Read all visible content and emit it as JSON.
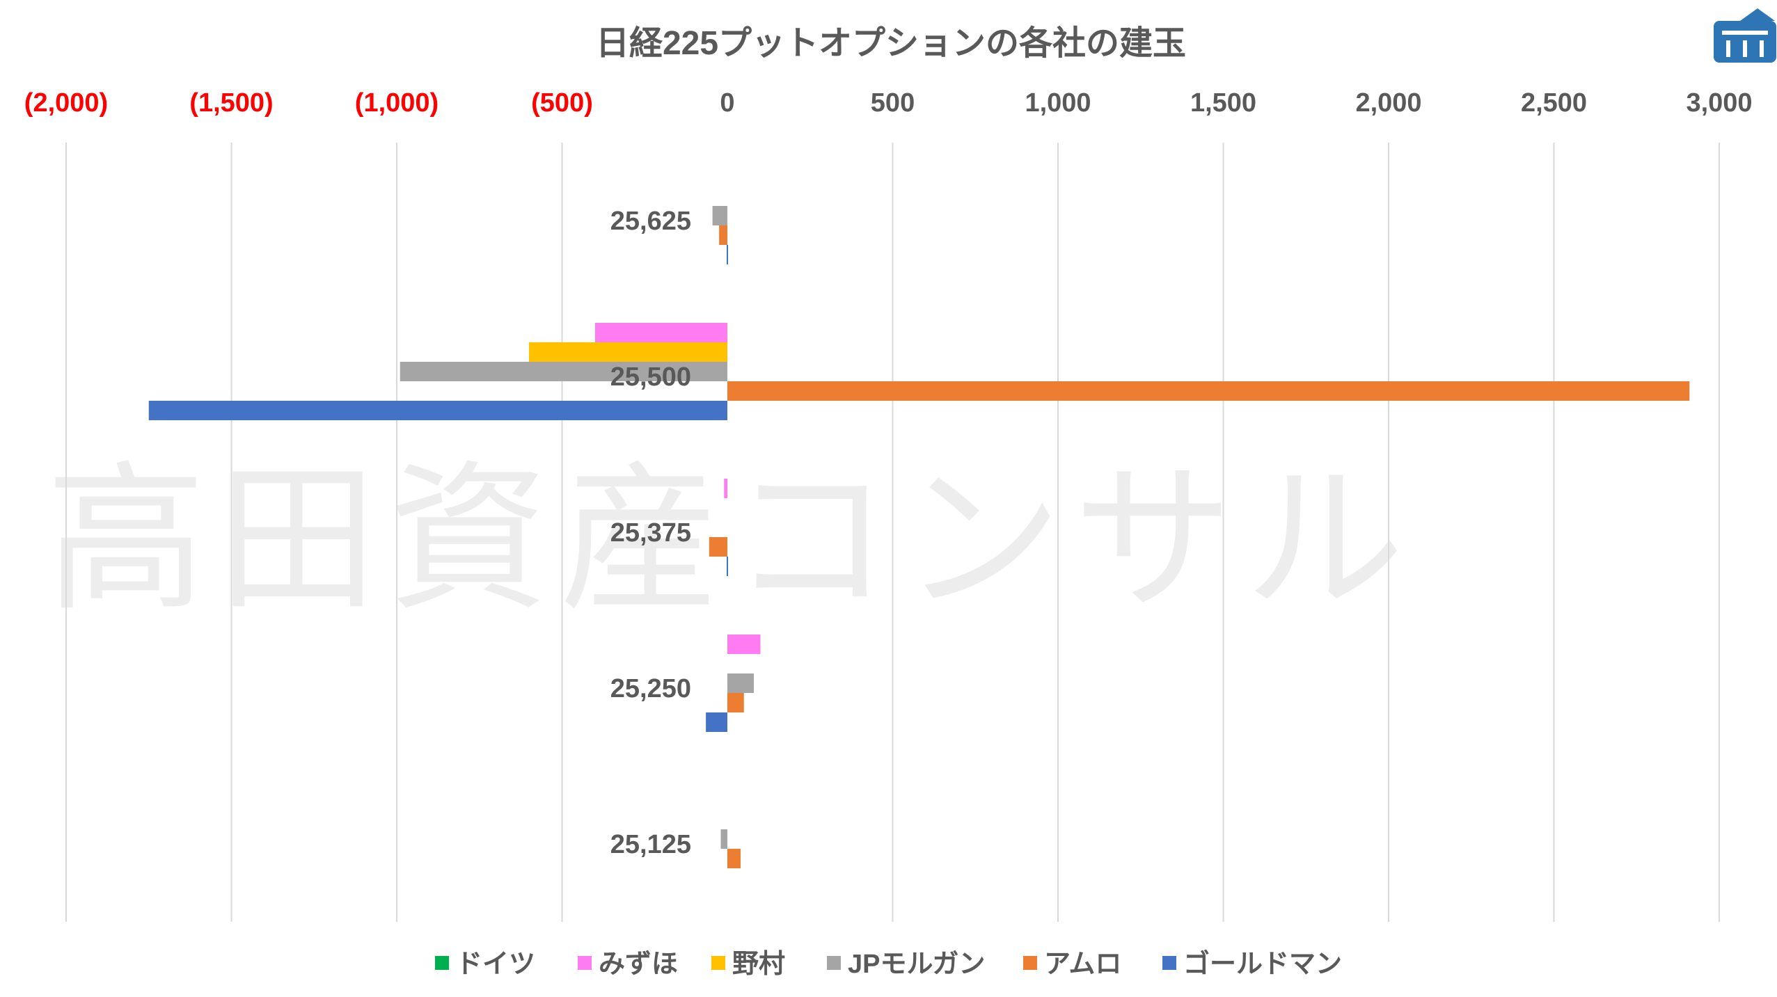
{
  "chart_data": {
    "type": "bar",
    "orientation": "horizontal",
    "title": "日経225プットオプションの各社の建玉",
    "categories": [
      "25,625",
      "25,500",
      "25,375",
      "25,250",
      "25,125"
    ],
    "series": [
      {
        "name": "ドイツ",
        "color": "#00b050",
        "values": [
          0,
          0,
          0,
          0,
          0
        ]
      },
      {
        "name": "みずほ",
        "color": "#ff7bf2",
        "values": [
          0,
          -400,
          -10,
          100,
          0
        ]
      },
      {
        "name": "野村",
        "color": "#ffc000",
        "values": [
          0,
          -600,
          0,
          0,
          0
        ]
      },
      {
        "name": "JPモルガン",
        "color": "#a5a5a5",
        "values": [
          -45,
          -990,
          0,
          80,
          -20
        ]
      },
      {
        "name": "アムロ",
        "color": "#ed7d31",
        "values": [
          -25,
          2910,
          -55,
          50,
          40
        ]
      },
      {
        "name": "ゴールドマン",
        "color": "#4472c4",
        "values": [
          -2,
          -1750,
          -2,
          -65,
          0
        ]
      }
    ],
    "xlim": [
      -2000,
      3000
    ],
    "xticks": [
      -2000,
      -1500,
      -1000,
      -500,
      0,
      500,
      1000,
      1500,
      2000,
      2500,
      3000
    ],
    "xtick_labels": [
      "(2,000)",
      "(1,500)",
      "(1,000)",
      "(500)",
      "0",
      "500",
      "1,000",
      "1,500",
      "2,000",
      "2,500",
      "3,000"
    ],
    "xtick_colors": {
      "negative": "#ff0000",
      "nonnegative": "#595959"
    },
    "grid": true,
    "axis_position": "top",
    "legend": "bottom"
  },
  "watermark": "高田資産コンサル",
  "logo": {
    "icon": "building-logo-icon",
    "color": "#2e75b6"
  }
}
